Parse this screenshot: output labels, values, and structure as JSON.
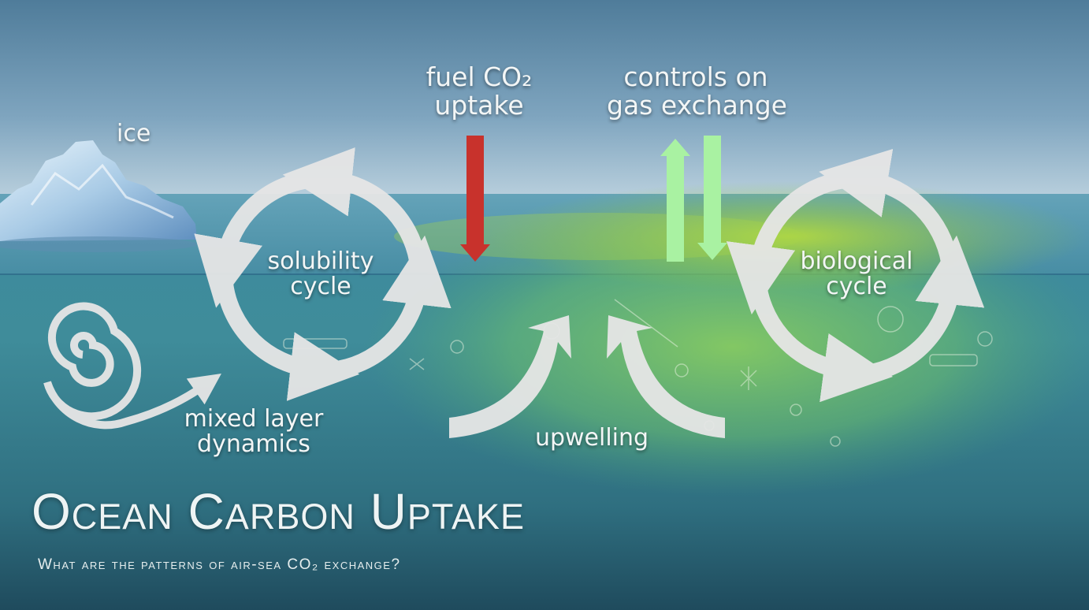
{
  "slide": {
    "title": "Ocean Carbon Uptake",
    "subtitle": "What are the patterns of air-sea CO₂ exchange?"
  },
  "labels": {
    "ice": "ice",
    "fuel_line1": "fuel CO₂",
    "fuel_line2": "uptake",
    "controls_line1": "controls on",
    "controls_line2": "gas exchange",
    "solubility_line1": "solubility",
    "solubility_line2": "cycle",
    "biological_line1": "biological",
    "biological_line2": "cycle",
    "mixed_line1": "mixed layer",
    "mixed_line2": "dynamics",
    "upwelling": "upwelling"
  },
  "colors": {
    "fuel_arrow": "#c8322c",
    "gas_exchange_arrows": "#a9f2a2",
    "cycle_arrows": "#e8e8e8"
  }
}
